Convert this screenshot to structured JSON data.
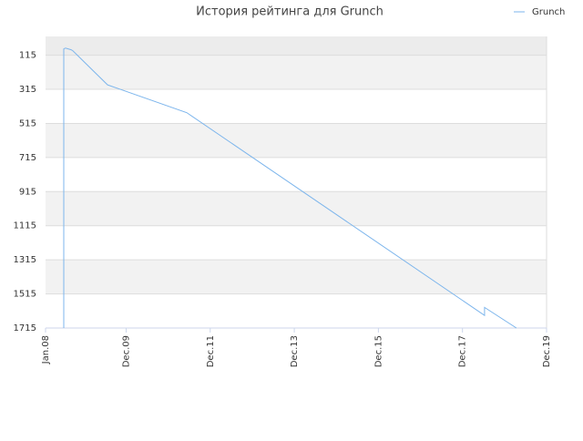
{
  "chart_data": {
    "type": "line",
    "title": "История рейтинга для Grunch",
    "x": [
      5.2,
      5.2,
      5.7,
      7.3,
      7.8,
      17.7,
      40.3,
      125.3,
      125.3,
      134.4
    ],
    "series": [
      {
        "name": "Grunch",
        "color": "#7cb5ec",
        "values": [
          1715,
          78,
          73,
          83,
          89,
          289,
          452,
          1641,
          1594,
          1715
        ]
      }
    ],
    "xlim": [
      0,
      143
    ],
    "xticks": [
      {
        "value": 0,
        "label": "Jan.08"
      },
      {
        "value": 23,
        "label": "Dec.09"
      },
      {
        "value": 47,
        "label": "Dec.11"
      },
      {
        "value": 71,
        "label": "Dec.13"
      },
      {
        "value": 95,
        "label": "Dec.15"
      },
      {
        "value": 119,
        "label": "Dec.17"
      },
      {
        "value": 143,
        "label": "Dec.19"
      }
    ],
    "ylim": [
      1715,
      5
    ],
    "y_inverted": true,
    "yticks": [
      115,
      315,
      515,
      715,
      915,
      1115,
      1315,
      1515,
      1715
    ],
    "grid": true,
    "legend": "top-right"
  }
}
